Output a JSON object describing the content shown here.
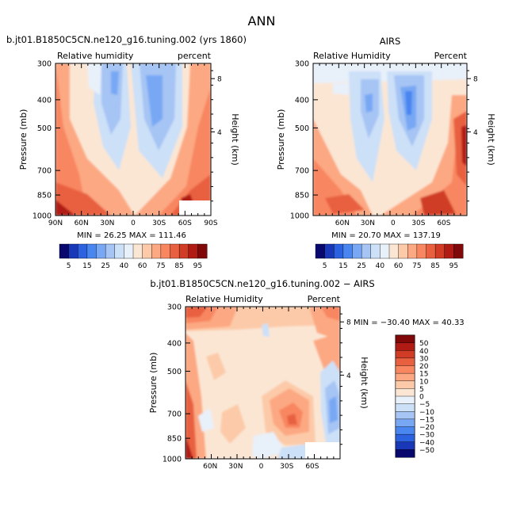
{
  "figure_title": "ANN",
  "chart_data": [
    {
      "type": "heatmap",
      "title": "b.jt01.B1850C5CN.ne120_g16.tuning.002 (yrs 1860)",
      "subtitle_left": "Relative humidity",
      "subtitle_right": "percent",
      "ylabel": "Pressure (mb)",
      "y2label": "Height (km)",
      "xticks": [
        "90N",
        "60N",
        "30N",
        "0",
        "30S",
        "60S",
        "90S"
      ],
      "yticks": [
        "300",
        "400",
        "500",
        "700",
        "850",
        "1000"
      ],
      "y2ticks": [
        "8",
        "4"
      ],
      "ylim": [
        1000,
        300
      ],
      "xlim": [
        "90N",
        "90S"
      ],
      "stats": "MIN =   26.25   MAX = 111.46",
      "missing_region": "60S-90S below 900 mb",
      "colorbar_labels": [
        "5",
        "15",
        "25",
        "40",
        "60",
        "75",
        "85",
        "95"
      ]
    },
    {
      "type": "heatmap",
      "title": "AIRS",
      "subtitle_left": "Relative Humidity",
      "subtitle_right": "Percent",
      "ylabel": "Pressure (mb)",
      "y2label": "Height (km)",
      "xticks": [
        "60N",
        "30N",
        "0",
        "30S",
        "60S"
      ],
      "yticks": [
        "300",
        "400",
        "500",
        "700",
        "850",
        "1000"
      ],
      "y2ticks": [
        "8",
        "4"
      ],
      "ylim": [
        1000,
        300
      ],
      "stats": "MIN =   20.70   MAX = 137.19",
      "colorbar_labels": [
        "5",
        "15",
        "25",
        "40",
        "60",
        "75",
        "85",
        "95"
      ]
    },
    {
      "type": "heatmap",
      "title": "b.jt01.B1850C5CN.ne120_g16.tuning.002 − AIRS",
      "subtitle_left": "Relative Humidity",
      "subtitle_right": "Percent",
      "ylabel": "Pressure (mb)",
      "y2label": "Height (km)",
      "xticks": [
        "60N",
        "30N",
        "0",
        "30S",
        "60S"
      ],
      "yticks": [
        "300",
        "400",
        "500",
        "700",
        "850",
        "1000"
      ],
      "y2ticks": [
        "8",
        "4"
      ],
      "ylim": [
        1000,
        300
      ],
      "stats": "MIN = −30.40   MAX =  40.33",
      "colorbar_labels": [
        "50",
        "40",
        "30",
        "20",
        "15",
        "10",
        "5",
        "0",
        "−5",
        "−10",
        "−15",
        "−20",
        "−30",
        "−40",
        "−50"
      ]
    }
  ],
  "colors": {
    "rh_scale": [
      "#08086e",
      "#1838b8",
      "#2c62e0",
      "#4a86f0",
      "#78a8f4",
      "#a6c4f4",
      "#cce0f8",
      "#e8f0fa",
      "#fbe6d4",
      "#fccaa8",
      "#fca882",
      "#f88660",
      "#e86040",
      "#d03c26",
      "#b01c14",
      "#800808"
    ],
    "diff_scale": [
      "#800808",
      "#b01c14",
      "#d03c26",
      "#e86040",
      "#f88660",
      "#fca882",
      "#fccaa8",
      "#fbe6d4",
      "#e8f0fa",
      "#cce0f8",
      "#a6c4f4",
      "#78a8f4",
      "#4a86f0",
      "#2c62e0",
      "#1838b8",
      "#08086e"
    ]
  }
}
